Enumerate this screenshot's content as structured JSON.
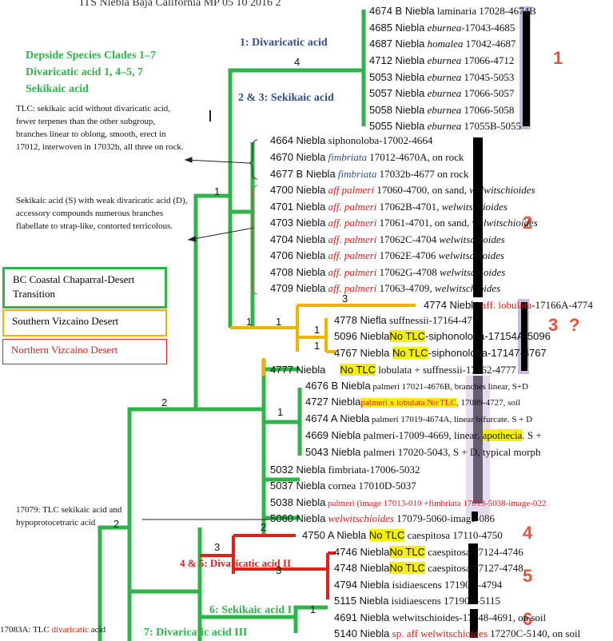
{
  "header": {
    "title": "ITS Niebla Baja California MP 05 10 2016 2"
  },
  "headings": {
    "left_green": [
      "Depside Species Clades 1–7",
      "Divaricatic acid 1, 4–5, 7",
      "Sekikaic acid"
    ],
    "div1": "1: Divaricatic acid",
    "sek23": "2 & 3: Sekikaic acid",
    "div45": "4 & 5: Divaricatic acid II",
    "sek6": "6: Sekikaic acid I",
    "div7": "7: Divaricatic acid III"
  },
  "notes": {
    "tlc_sekikaic": "TLC: sekikaic acid without divaricatic acid, fewer terpenes than the other subgroup, branches linear to oblong, smooth, erect in 17012, interwoven in 17032b, all three on rock.",
    "sekikaic_weak": "Sekikaic acid (S) with weak divaricatic acid (D), accessory compounds numerous branches flabellate to strap-like, contorted terricolous.",
    "n17079": "17079: TLC sekikaic acid and hypoprotocetraric acid",
    "n17083": "17083A: TLC divaricatic acid"
  },
  "legend": {
    "chaparral": "BC Coastal Chaparral-Desert Transition",
    "southern": "Southern Vizcaíno Desert",
    "northern": "Northern Vizcaíno Desert",
    "colors": {
      "chaparral": "#2fb44a",
      "southern": "#f0b400",
      "northern": "#e0201b"
    }
  },
  "clade_numbers": [
    "1",
    "2",
    "3",
    "?",
    "4",
    "5",
    "6"
  ],
  "support": {
    "s4": "4",
    "s1a": "1",
    "s1b": "1",
    "s1c": "1",
    "s3": "3",
    "s1d": "1",
    "s1e": "1",
    "s2a": "2",
    "s1f": "1",
    "s2b": "2",
    "s3b": "3",
    "s3c": "3",
    "s1g": "1",
    "s2c": "2"
  },
  "taxa": [
    {
      "a": "4674 B Niebla",
      "b": " laminaria",
      "c": " 17028-4674B"
    },
    {
      "a": "4685 Niebla",
      "b": " eburnea",
      "c": "-17043-4685"
    },
    {
      "a": "4687 Niebla",
      "b": " homalea",
      "c": " 17042-4687"
    },
    {
      "a": "4712 Niebla",
      "b": " eburnea",
      "c": " 17066-4712"
    },
    {
      "a": "5053 Niebla",
      "b": " eburnea",
      "c": " 17045-5053"
    },
    {
      "a": "5057 Niebla",
      "b": " eburnea",
      "c": " 17066-5057"
    },
    {
      "a": "5058 Niebla",
      "b": " eburnea",
      "c": " 17066-5058"
    },
    {
      "a": "5055 Niebla",
      "b": " eburnea",
      "c": " 17055B-5055"
    },
    {
      "a": "4664 Niebla",
      "b": " siphonoloba",
      "c": "-17002-4664"
    },
    {
      "a": "4670 Niebla",
      "b": " fimbriata",
      "c": " 17012-4670A, on rock"
    },
    {
      "a": "4677 B Niebla",
      "b": "  fimbriata",
      "c": " 17032b-4677 on rock"
    },
    {
      "a": "4700 Niebla",
      "b": " aff palmeri",
      "c": " 17060-4700, on sand, ",
      "d": "welwitschioides"
    },
    {
      "a": "4701 Niebla",
      "b": " aff. palmeri",
      "c": " 17062B-4701, ",
      "d": "welwitschioides"
    },
    {
      "a": "4703 Niebla",
      "b": " aff. palmeri",
      "c": " 17061-4701, on sand, ",
      "d": "welwitschioides"
    },
    {
      "a": "4704 Niebla",
      "b": " aff. palmeri",
      "c": " 17062C-4704 ",
      "d": "welwitschioides"
    },
    {
      "a": "4706 Niebla",
      "b": " aff. palmeri",
      "c": " 17062E-4706 ",
      "d": "welwitschioides"
    },
    {
      "a": "4708 Niebla",
      "b": " aff. palmeri",
      "c": " 17062G-4708 ",
      "d": "welwitschioides"
    },
    {
      "a": "4709 Niebla",
      "b": " aff. palmeri",
      "c": " 17063-4709, ",
      "d": "welwitschioides"
    },
    {
      "a": "4774 Niebla",
      "b": " aff. lobulata",
      "c": "-17166A-4774"
    },
    {
      "a": "4778 Niefla",
      "b": "",
      "c": "   suffnessii-17164-4778"
    },
    {
      "a": "5096 Niebla",
      "hl": "No TLC",
      "c": "-siphonoloba-17154A-5096"
    },
    {
      "a": "4767 Niebla",
      "hl": "No TLC",
      "c": "-siphonoloba-17147-4767"
    },
    {
      "a": "4777 Niebla",
      "hl": "No TLC",
      "c": "  lobulata + suffnessii-17162-4777"
    },
    {
      "a": "4676 B Niebla",
      "c": " palmeri 17021-4676B, branches linear, S+D"
    },
    {
      "a": "4727 Niebla",
      "hl": "palmeri x lobulata No TLC",
      "c": ", 17089-4727, soil"
    },
    {
      "a": "4674 A Niebla",
      "c": " palmeri 17019-4674A, linear bifurcate. S + D"
    },
    {
      "a": "4669 Niebla",
      "c": " palmeri-17009-4669, linear, ",
      "hl2": "apothecia",
      "c2": ". S +"
    },
    {
      "a": "5043 Niebla",
      "c": " palmeri  17020-5043, S + D, typical morph"
    },
    {
      "a": "5032 Niebla",
      "c": " fimbriata-17006-5032"
    },
    {
      "a": "5037 Niebla",
      "c": " cornea  17010D-5037"
    },
    {
      "a": "5038 Niebla",
      "r": " palmeri (image 17013-010 +fimbriata 17013-5038-image-022"
    },
    {
      "a": "5060 Niebla",
      "b": " welwitschioides",
      "c": " 17079-5060-image-086"
    },
    {
      "a": "4750 A Niebla",
      "hl": "No TLC",
      "c": " caespitosa 17110-4750"
    },
    {
      "a": "4746 Niebla",
      "hl": "No TLC",
      "c": " caespitosa 17124-4746"
    },
    {
      "a": "4748 Niebla",
      "hl": "No TLC",
      "c": " caespitosa 17127-4748"
    },
    {
      "a": "4794 Niebla",
      "c": " isidiaescens 17190A-4794"
    },
    {
      "a": "5115 Niebla",
      "c": " isidiaescens 17190B-5115"
    },
    {
      "a": "4691 Niebla",
      "c": " welwitschioides-17048-4691, on soil"
    },
    {
      "a": "5140 Niebla",
      "r": " sp. aff welwitschioides",
      "c": " 17270C-5140, on soil"
    }
  ]
}
